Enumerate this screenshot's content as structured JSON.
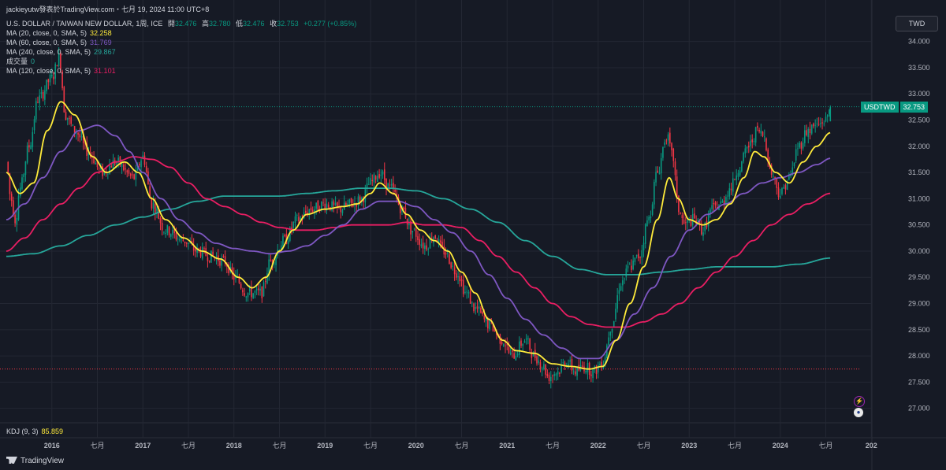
{
  "header": {
    "title": "jackieyutw發表於TradingView.com・七月 19, 2024 11:00 UTC+8",
    "symbol_line": "U.S. DOLLAR / TAIWAN NEW DOLLAR, 1周, ICE",
    "open_label": "開",
    "open_value": "32.476",
    "high_label": "高",
    "high_value": "32.780",
    "low_label": "低",
    "low_value": "32.476",
    "close_label": "收",
    "close_value": "32.753",
    "change_value": "+0.277 (+0.85%)",
    "indicators": [
      {
        "label": "MA (20, close, 0, SMA, 5)",
        "value": "32.258",
        "color": "#ffeb3b"
      },
      {
        "label": "MA (60, close, 0, SMA, 5)",
        "value": "31.769",
        "color": "#7e57c2"
      },
      {
        "label": "MA (240, close, 0, SMA, 5)",
        "value": "29.867",
        "color": "#26a69a"
      },
      {
        "label": "成交量",
        "value": "0",
        "color": "#26a69a"
      },
      {
        "label": "MA (120, close, 0, SMA, 5)",
        "value": "31.101",
        "color": "#e91e63"
      }
    ],
    "kdj_label": "KDJ (9, 3)",
    "kdj_value": "85.859"
  },
  "currency_button": "TWD",
  "price_badge": {
    "symbol": "USDTWD",
    "price": "32.753"
  },
  "logo_text": "TradingView",
  "colors": {
    "background": "#161a25",
    "grid": "#232733",
    "up": "#089981",
    "down": "#f23645",
    "ma20": "#ffeb3b",
    "ma60": "#7e57c2",
    "ma120": "#e91e63",
    "ma240": "#26a69a",
    "text": "#d1d4dc",
    "axis_text": "#b2b5be"
  },
  "chart_data": {
    "type": "candlestick",
    "y_axis": {
      "min": 26.8,
      "max": 34.1,
      "ticks": [
        "27.000",
        "27.500",
        "28.000",
        "28.500",
        "29.000",
        "29.500",
        "30.000",
        "30.500",
        "31.000",
        "31.500",
        "32.000",
        "32.500",
        "33.000",
        "33.500",
        "34.000"
      ]
    },
    "x_axis": {
      "start": 2015.5,
      "end": 2025.5,
      "ticks": [
        {
          "t": 2016.0,
          "label": "2016",
          "bold": true
        },
        {
          "t": 2016.5,
          "label": "七月"
        },
        {
          "t": 2017.0,
          "label": "2017",
          "bold": true
        },
        {
          "t": 2017.5,
          "label": "七月"
        },
        {
          "t": 2018.0,
          "label": "2018",
          "bold": true
        },
        {
          "t": 2018.5,
          "label": "七月"
        },
        {
          "t": 2019.0,
          "label": "2019",
          "bold": true
        },
        {
          "t": 2019.5,
          "label": "七月"
        },
        {
          "t": 2020.0,
          "label": "2020",
          "bold": true
        },
        {
          "t": 2020.5,
          "label": "七月"
        },
        {
          "t": 2021.0,
          "label": "2021",
          "bold": true
        },
        {
          "t": 2021.5,
          "label": "七月"
        },
        {
          "t": 2022.0,
          "label": "2022",
          "bold": true
        },
        {
          "t": 2022.5,
          "label": "七月"
        },
        {
          "t": 2023.0,
          "label": "2023",
          "bold": true
        },
        {
          "t": 2023.5,
          "label": "七月"
        },
        {
          "t": 2024.0,
          "label": "2024",
          "bold": true
        },
        {
          "t": 2024.5,
          "label": "七月"
        },
        {
          "t": 2025.0,
          "label": "202",
          "bold": true
        }
      ]
    },
    "price_anchors": [
      [
        2015.5,
        31.7
      ],
      [
        2015.55,
        31.0
      ],
      [
        2015.6,
        30.6
      ],
      [
        2015.65,
        31.2
      ],
      [
        2015.75,
        32.0
      ],
      [
        2015.85,
        32.9
      ],
      [
        2016.0,
        33.3
      ],
      [
        2016.08,
        33.7
      ],
      [
        2016.15,
        32.6
      ],
      [
        2016.25,
        32.3
      ],
      [
        2016.4,
        31.9
      ],
      [
        2016.55,
        31.5
      ],
      [
        2016.7,
        31.7
      ],
      [
        2016.9,
        31.4
      ],
      [
        2017.0,
        31.8
      ],
      [
        2017.1,
        30.9
      ],
      [
        2017.25,
        30.4
      ],
      [
        2017.45,
        30.2
      ],
      [
        2017.6,
        30.0
      ],
      [
        2017.75,
        29.9
      ],
      [
        2017.9,
        29.8
      ],
      [
        2018.0,
        29.5
      ],
      [
        2018.15,
        29.2
      ],
      [
        2018.3,
        29.2
      ],
      [
        2018.4,
        29.8
      ],
      [
        2018.55,
        30.2
      ],
      [
        2018.7,
        30.6
      ],
      [
        2018.85,
        30.8
      ],
      [
        2019.0,
        30.9
      ],
      [
        2019.15,
        30.8
      ],
      [
        2019.3,
        30.9
      ],
      [
        2019.4,
        31.0
      ],
      [
        2019.5,
        31.3
      ],
      [
        2019.6,
        31.5
      ],
      [
        2019.72,
        31.2
      ],
      [
        2019.85,
        30.8
      ],
      [
        2019.95,
        30.4
      ],
      [
        2020.1,
        30.1
      ],
      [
        2020.2,
        30.3
      ],
      [
        2020.3,
        30.0
      ],
      [
        2020.45,
        29.6
      ],
      [
        2020.55,
        29.2
      ],
      [
        2020.65,
        28.9
      ],
      [
        2020.8,
        28.6
      ],
      [
        2020.95,
        28.3
      ],
      [
        2021.05,
        28.0
      ],
      [
        2021.2,
        28.3
      ],
      [
        2021.3,
        28.0
      ],
      [
        2021.4,
        27.8
      ],
      [
        2021.45,
        27.6
      ],
      [
        2021.55,
        27.7
      ],
      [
        2021.65,
        27.9
      ],
      [
        2021.75,
        27.7
      ],
      [
        2021.85,
        27.8
      ],
      [
        2021.95,
        27.7
      ],
      [
        2022.05,
        27.9
      ],
      [
        2022.15,
        28.6
      ],
      [
        2022.25,
        29.4
      ],
      [
        2022.35,
        29.7
      ],
      [
        2022.45,
        29.9
      ],
      [
        2022.55,
        30.6
      ],
      [
        2022.65,
        31.5
      ],
      [
        2022.75,
        32.2
      ],
      [
        2022.82,
        31.8
      ],
      [
        2022.88,
        30.8
      ],
      [
        2022.95,
        30.5
      ],
      [
        2023.05,
        30.6
      ],
      [
        2023.15,
        30.4
      ],
      [
        2023.25,
        30.8
      ],
      [
        2023.35,
        30.9
      ],
      [
        2023.45,
        31.2
      ],
      [
        2023.55,
        31.6
      ],
      [
        2023.65,
        32.0
      ],
      [
        2023.75,
        32.3
      ],
      [
        2023.82,
        32.2
      ],
      [
        2023.9,
        31.5
      ],
      [
        2024.0,
        31.1
      ],
      [
        2024.1,
        31.4
      ],
      [
        2024.2,
        32.0
      ],
      [
        2024.3,
        32.3
      ],
      [
        2024.4,
        32.4
      ],
      [
        2024.5,
        32.5
      ],
      [
        2024.55,
        32.753
      ]
    ],
    "last_candle": {
      "open": 32.476,
      "high": 32.78,
      "low": 32.476,
      "close": 32.753
    },
    "ma20_anchors": [
      [
        2015.5,
        31.5
      ],
      [
        2015.65,
        31.1
      ],
      [
        2015.8,
        31.3
      ],
      [
        2015.95,
        32.3
      ],
      [
        2016.1,
        32.85
      ],
      [
        2016.25,
        32.6
      ],
      [
        2016.45,
        31.8
      ],
      [
        2016.6,
        31.5
      ],
      [
        2016.8,
        31.7
      ],
      [
        2016.95,
        31.5
      ],
      [
        2017.1,
        31.0
      ],
      [
        2017.25,
        30.6
      ],
      [
        2017.45,
        30.25
      ],
      [
        2017.65,
        30.0
      ],
      [
        2017.85,
        29.85
      ],
      [
        2018.05,
        29.5
      ],
      [
        2018.2,
        29.3
      ],
      [
        2018.35,
        29.5
      ],
      [
        2018.5,
        30.0
      ],
      [
        2018.65,
        30.4
      ],
      [
        2018.8,
        30.7
      ],
      [
        2019.0,
        30.8
      ],
      [
        2019.2,
        30.85
      ],
      [
        2019.35,
        30.9
      ],
      [
        2019.5,
        31.1
      ],
      [
        2019.6,
        31.3
      ],
      [
        2019.75,
        31.1
      ],
      [
        2019.9,
        30.7
      ],
      [
        2020.05,
        30.4
      ],
      [
        2020.2,
        30.2
      ],
      [
        2020.35,
        30.0
      ],
      [
        2020.5,
        29.6
      ],
      [
        2020.65,
        29.2
      ],
      [
        2020.8,
        28.7
      ],
      [
        2020.95,
        28.3
      ],
      [
        2021.1,
        28.1
      ],
      [
        2021.3,
        28.05
      ],
      [
        2021.5,
        27.85
      ],
      [
        2021.7,
        27.8
      ],
      [
        2021.9,
        27.75
      ],
      [
        2022.05,
        27.8
      ],
      [
        2022.2,
        28.3
      ],
      [
        2022.35,
        29.0
      ],
      [
        2022.5,
        29.7
      ],
      [
        2022.65,
        30.6
      ],
      [
        2022.78,
        31.4
      ],
      [
        2022.88,
        31.0
      ],
      [
        2023.0,
        30.6
      ],
      [
        2023.15,
        30.5
      ],
      [
        2023.3,
        30.6
      ],
      [
        2023.45,
        30.9
      ],
      [
        2023.6,
        31.4
      ],
      [
        2023.72,
        31.9
      ],
      [
        2023.82,
        31.8
      ],
      [
        2023.95,
        31.5
      ],
      [
        2024.1,
        31.3
      ],
      [
        2024.25,
        31.7
      ],
      [
        2024.4,
        32.0
      ],
      [
        2024.55,
        32.258
      ]
    ],
    "ma60_anchors": [
      [
        2015.5,
        30.6
      ],
      [
        2015.7,
        30.9
      ],
      [
        2015.9,
        31.4
      ],
      [
        2016.1,
        31.9
      ],
      [
        2016.3,
        32.3
      ],
      [
        2016.5,
        32.4
      ],
      [
        2016.7,
        32.2
      ],
      [
        2016.85,
        31.9
      ],
      [
        2017.0,
        31.5
      ],
      [
        2017.2,
        31.0
      ],
      [
        2017.4,
        30.6
      ],
      [
        2017.6,
        30.35
      ],
      [
        2017.8,
        30.15
      ],
      [
        2018.0,
        30.05
      ],
      [
        2018.2,
        30.0
      ],
      [
        2018.4,
        29.95
      ],
      [
        2018.6,
        30.0
      ],
      [
        2018.8,
        30.1
      ],
      [
        2019.0,
        30.3
      ],
      [
        2019.2,
        30.5
      ],
      [
        2019.4,
        30.8
      ],
      [
        2019.6,
        30.95
      ],
      [
        2019.8,
        30.95
      ],
      [
        2020.0,
        30.85
      ],
      [
        2020.2,
        30.6
      ],
      [
        2020.4,
        30.35
      ],
      [
        2020.6,
        30.0
      ],
      [
        2020.8,
        29.55
      ],
      [
        2021.0,
        29.1
      ],
      [
        2021.2,
        28.7
      ],
      [
        2021.4,
        28.4
      ],
      [
        2021.6,
        28.15
      ],
      [
        2021.8,
        27.95
      ],
      [
        2022.0,
        27.95
      ],
      [
        2022.2,
        28.3
      ],
      [
        2022.4,
        28.8
      ],
      [
        2022.6,
        29.3
      ],
      [
        2022.8,
        29.9
      ],
      [
        2023.0,
        30.4
      ],
      [
        2023.2,
        30.7
      ],
      [
        2023.4,
        30.9
      ],
      [
        2023.6,
        31.1
      ],
      [
        2023.8,
        31.3
      ],
      [
        2024.0,
        31.4
      ],
      [
        2024.2,
        31.5
      ],
      [
        2024.4,
        31.65
      ],
      [
        2024.55,
        31.769
      ]
    ],
    "ma120_anchors": [
      [
        2015.5,
        30.0
      ],
      [
        2015.7,
        30.25
      ],
      [
        2015.9,
        30.6
      ],
      [
        2016.1,
        30.9
      ],
      [
        2016.3,
        31.2
      ],
      [
        2016.5,
        31.5
      ],
      [
        2016.7,
        31.7
      ],
      [
        2016.9,
        31.8
      ],
      [
        2017.1,
        31.75
      ],
      [
        2017.3,
        31.6
      ],
      [
        2017.5,
        31.3
      ],
      [
        2017.7,
        31.0
      ],
      [
        2017.9,
        30.85
      ],
      [
        2018.1,
        30.7
      ],
      [
        2018.3,
        30.55
      ],
      [
        2018.5,
        30.45
      ],
      [
        2018.7,
        30.4
      ],
      [
        2018.9,
        30.4
      ],
      [
        2019.1,
        30.45
      ],
      [
        2019.3,
        30.5
      ],
      [
        2019.5,
        30.5
      ],
      [
        2019.7,
        30.5
      ],
      [
        2019.9,
        30.55
      ],
      [
        2020.1,
        30.5
      ],
      [
        2020.3,
        30.5
      ],
      [
        2020.5,
        30.45
      ],
      [
        2020.7,
        30.2
      ],
      [
        2020.9,
        29.9
      ],
      [
        2021.1,
        29.6
      ],
      [
        2021.3,
        29.3
      ],
      [
        2021.5,
        29.0
      ],
      [
        2021.7,
        28.75
      ],
      [
        2021.9,
        28.6
      ],
      [
        2022.1,
        28.55
      ],
      [
        2022.3,
        28.55
      ],
      [
        2022.5,
        28.65
      ],
      [
        2022.7,
        28.8
      ],
      [
        2022.9,
        29.0
      ],
      [
        2023.1,
        29.3
      ],
      [
        2023.3,
        29.6
      ],
      [
        2023.5,
        29.9
      ],
      [
        2023.7,
        30.2
      ],
      [
        2023.9,
        30.5
      ],
      [
        2024.1,
        30.7
      ],
      [
        2024.3,
        30.9
      ],
      [
        2024.55,
        31.101
      ]
    ],
    "ma240_anchors": [
      [
        2015.5,
        29.9
      ],
      [
        2015.8,
        29.95
      ],
      [
        2016.1,
        30.1
      ],
      [
        2016.4,
        30.3
      ],
      [
        2016.7,
        30.5
      ],
      [
        2017.0,
        30.65
      ],
      [
        2017.3,
        30.8
      ],
      [
        2017.6,
        30.95
      ],
      [
        2017.9,
        31.05
      ],
      [
        2018.2,
        31.05
      ],
      [
        2018.5,
        31.05
      ],
      [
        2018.8,
        31.1
      ],
      [
        2019.1,
        31.15
      ],
      [
        2019.4,
        31.2
      ],
      [
        2019.7,
        31.2
      ],
      [
        2020.0,
        31.15
      ],
      [
        2020.3,
        31.0
      ],
      [
        2020.6,
        30.8
      ],
      [
        2020.9,
        30.55
      ],
      [
        2021.2,
        30.2
      ],
      [
        2021.5,
        29.9
      ],
      [
        2021.8,
        29.65
      ],
      [
        2022.1,
        29.55
      ],
      [
        2022.4,
        29.55
      ],
      [
        2022.7,
        29.6
      ],
      [
        2023.0,
        29.65
      ],
      [
        2023.3,
        29.7
      ],
      [
        2023.6,
        29.7
      ],
      [
        2023.9,
        29.7
      ],
      [
        2024.2,
        29.75
      ],
      [
        2024.55,
        29.867
      ]
    ],
    "hline": 27.75
  }
}
